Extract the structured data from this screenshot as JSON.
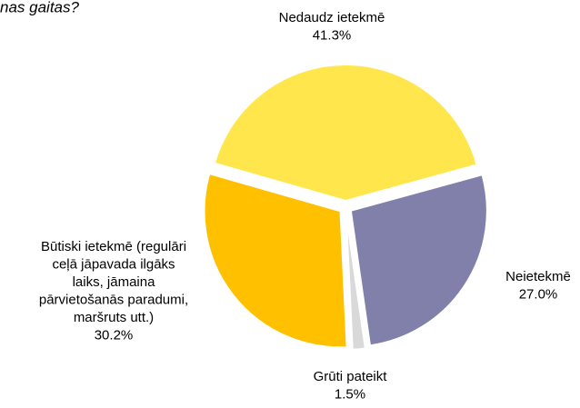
{
  "chart_data": {
    "type": "pie",
    "title": "nas gaitas?",
    "categories": [
      "Nedaudz ietekmē",
      "Neietekmē",
      "Grūti pateikt",
      "Būtiski ietekmē (regulāri ceļā jāpavada ilgāks laiks, jāmaina pārvietošanās paradumi, maršruts utt.)"
    ],
    "values": [
      41.3,
      27.0,
      1.5,
      30.2
    ],
    "value_labels": [
      "41.3%",
      "27.0%",
      "1.5%",
      "30.2%"
    ],
    "colors": [
      "#FFE64D",
      "#8080AA",
      "#D9D9D9",
      "#FFC000"
    ]
  }
}
